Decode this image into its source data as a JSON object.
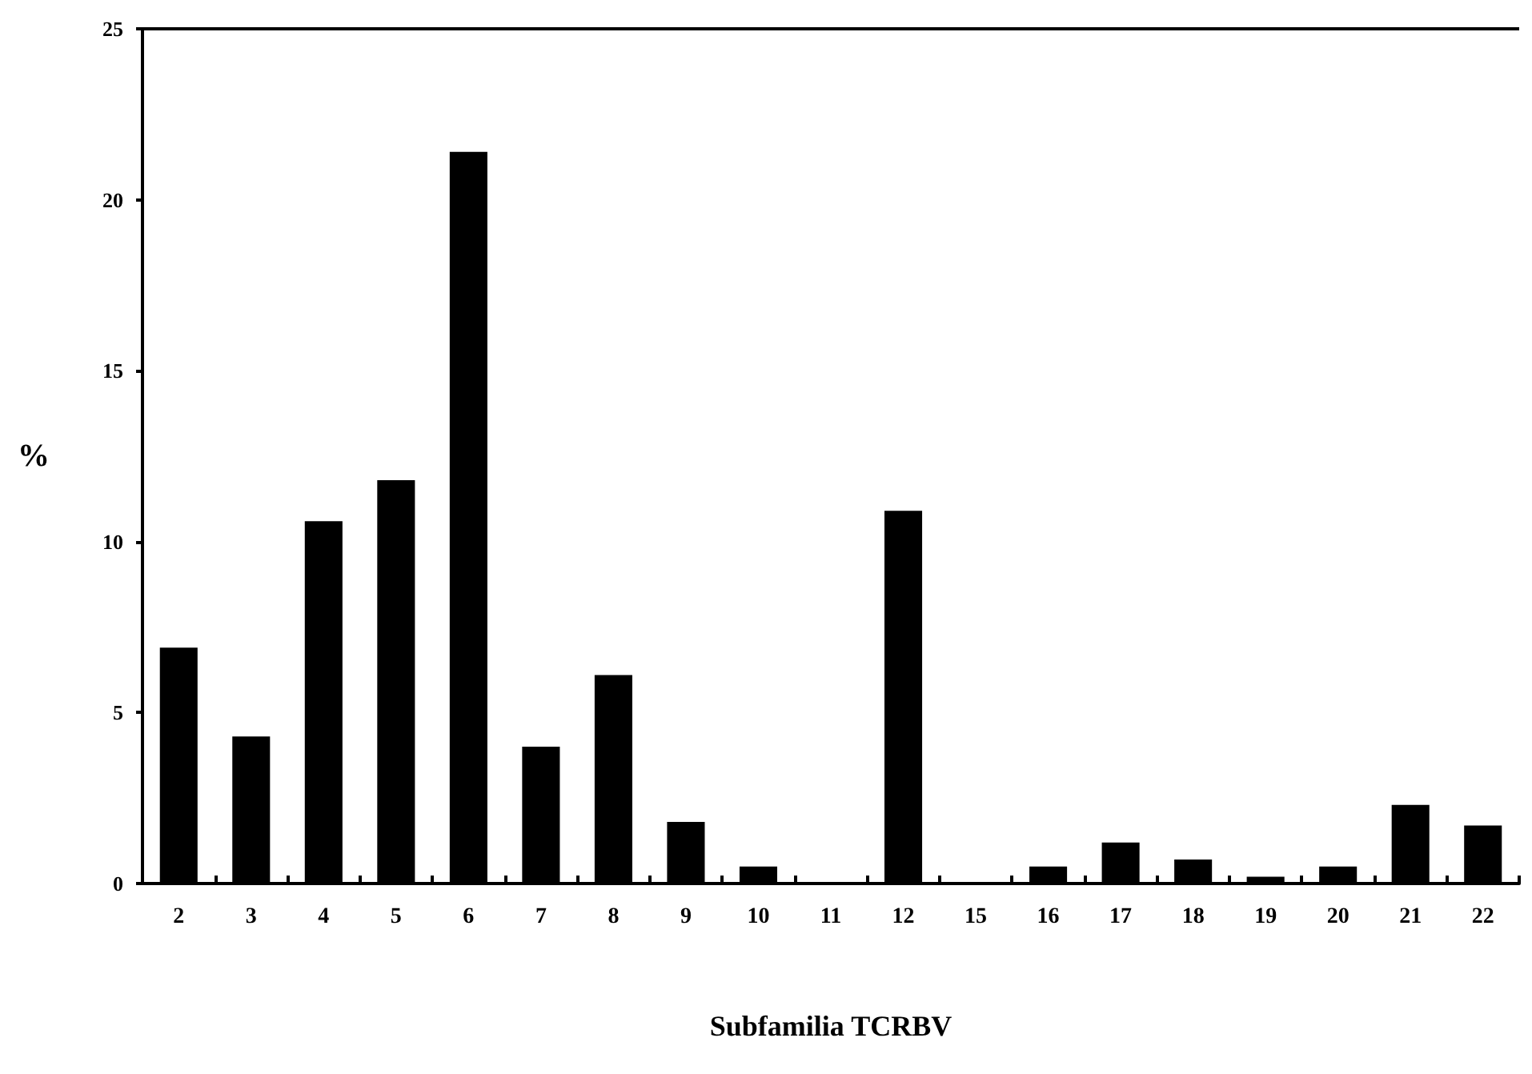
{
  "chart_data": {
    "type": "bar",
    "xlabel": "Subfamilia TCRBV",
    "ylabel": "%",
    "categories": [
      "2",
      "3",
      "4",
      "5",
      "6",
      "7",
      "8",
      "9",
      "10",
      "11",
      "12",
      "15",
      "16",
      "17",
      "18",
      "19",
      "20",
      "21",
      "22"
    ],
    "values": [
      6.9,
      4.3,
      10.6,
      11.8,
      21.4,
      4.0,
      6.1,
      1.8,
      0.5,
      0,
      10.9,
      0,
      0.5,
      1.2,
      0.7,
      0.2,
      0.5,
      2.3,
      1.7
    ],
    "color": "#000000",
    "ylim": [
      0,
      25
    ],
    "yticks": [
      0,
      5,
      10,
      15,
      20,
      25
    ],
    "grid": false
  }
}
